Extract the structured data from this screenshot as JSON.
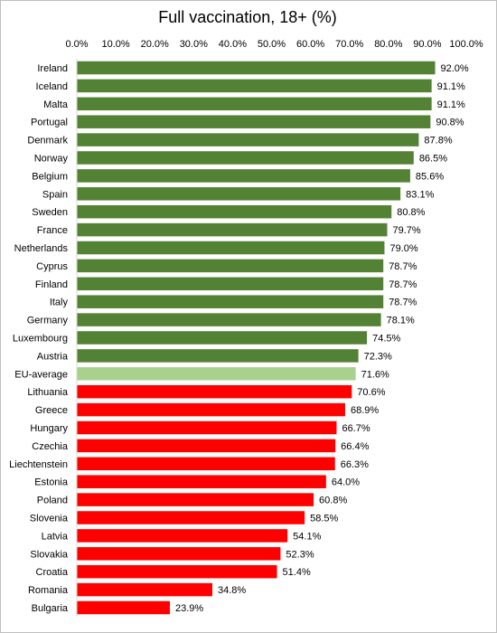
{
  "chart_data": {
    "type": "bar",
    "orientation": "horizontal",
    "title": "Full vaccination, 18+ (%)",
    "xlabel": "",
    "ylabel": "",
    "xlim": [
      0,
      100
    ],
    "tick_values": [
      0,
      10,
      20,
      30,
      40,
      50,
      60,
      70,
      80,
      90,
      100
    ],
    "tick_labels": [
      "0.0%",
      "10.0%",
      "20.0%",
      "30.0%",
      "40.0%",
      "50.0%",
      "60.0%",
      "70.0%",
      "80.0%",
      "90.0%",
      "100.0%"
    ],
    "axis_position": "top",
    "grid": false,
    "legend": false,
    "colors": {
      "above_average": "#548235",
      "average": "#a9d18e",
      "below_average": "#ff0000"
    },
    "categories": [
      "Ireland",
      "Iceland",
      "Malta",
      "Portugal",
      "Denmark",
      "Norway",
      "Belgium",
      "Spain",
      "Sweden",
      "France",
      "Netherlands",
      "Cyprus",
      "Finland",
      "Italy",
      "Germany",
      "Luxembourg",
      "Austria",
      "EU-average",
      "Lithuania",
      "Greece",
      "Hungary",
      "Czechia",
      "Liechtenstein",
      "Estonia",
      "Poland",
      "Slovenia",
      "Latvia",
      "Slovakia",
      "Croatia",
      "Romania",
      "Bulgaria"
    ],
    "values": [
      92.0,
      91.1,
      91.1,
      90.8,
      87.8,
      86.5,
      85.6,
      83.1,
      80.8,
      79.7,
      79.0,
      78.7,
      78.7,
      78.7,
      78.1,
      74.5,
      72.3,
      71.6,
      70.6,
      68.9,
      66.7,
      66.4,
      66.3,
      64.0,
      60.8,
      58.5,
      54.1,
      52.3,
      51.4,
      34.8,
      23.9
    ],
    "value_labels": [
      "92.0%",
      "91.1%",
      "91.1%",
      "90.8%",
      "87.8%",
      "86.5%",
      "85.6%",
      "83.1%",
      "80.8%",
      "79.7%",
      "79.0%",
      "78.7%",
      "78.7%",
      "78.7%",
      "78.1%",
      "74.5%",
      "72.3%",
      "71.6%",
      "70.6%",
      "68.9%",
      "66.7%",
      "66.4%",
      "66.3%",
      "64.0%",
      "60.8%",
      "58.5%",
      "54.1%",
      "52.3%",
      "51.4%",
      "34.8%",
      "23.9%"
    ],
    "bar_groups": [
      "above_average",
      "above_average",
      "above_average",
      "above_average",
      "above_average",
      "above_average",
      "above_average",
      "above_average",
      "above_average",
      "above_average",
      "above_average",
      "above_average",
      "above_average",
      "above_average",
      "above_average",
      "above_average",
      "above_average",
      "average",
      "below_average",
      "below_average",
      "below_average",
      "below_average",
      "below_average",
      "below_average",
      "below_average",
      "below_average",
      "below_average",
      "below_average",
      "below_average",
      "below_average",
      "below_average"
    ]
  }
}
